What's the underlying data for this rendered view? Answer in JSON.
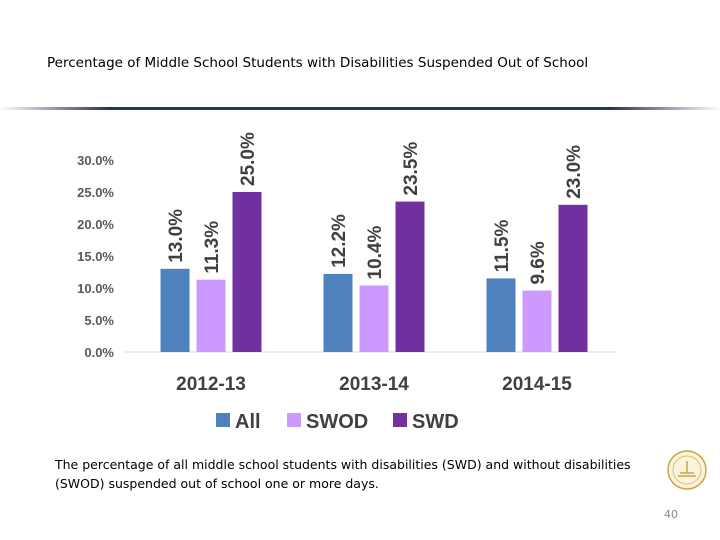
{
  "slide": {
    "title": "Percentage of Middle School Students with Disabilities Suspended Out of School",
    "caption": "The percentage of all middle school students with disabilities (SWD) and without disabilities (SWOD) suspended out of school one or more days.",
    "page_number": "40"
  },
  "chart_data": {
    "type": "bar",
    "title": "",
    "categories": [
      "2012-13",
      "2013-14",
      "2014-15"
    ],
    "series": [
      {
        "name": "All",
        "color": "#4f81bd",
        "values": [
          13.0,
          12.2,
          11.5
        ],
        "labels": [
          "13.0%",
          "12.2%",
          "11.5%"
        ]
      },
      {
        "name": "SWOD",
        "color": "#cc99ff",
        "values": [
          11.3,
          10.4,
          9.6
        ],
        "labels": [
          "11.3%",
          "10.4%",
          "9.6%"
        ]
      },
      {
        "name": "SWD",
        "color": "#7030a0",
        "values": [
          25.0,
          23.5,
          23.0
        ],
        "labels": [
          "25.0%",
          "23.5%",
          "23.0%"
        ]
      }
    ],
    "ylim": [
      0,
      30
    ],
    "yticks": [
      "0.0%",
      "5.0%",
      "10.0%",
      "15.0%",
      "20.0%",
      "25.0%",
      "30.0%"
    ],
    "grid": false,
    "legend": "bottom"
  }
}
